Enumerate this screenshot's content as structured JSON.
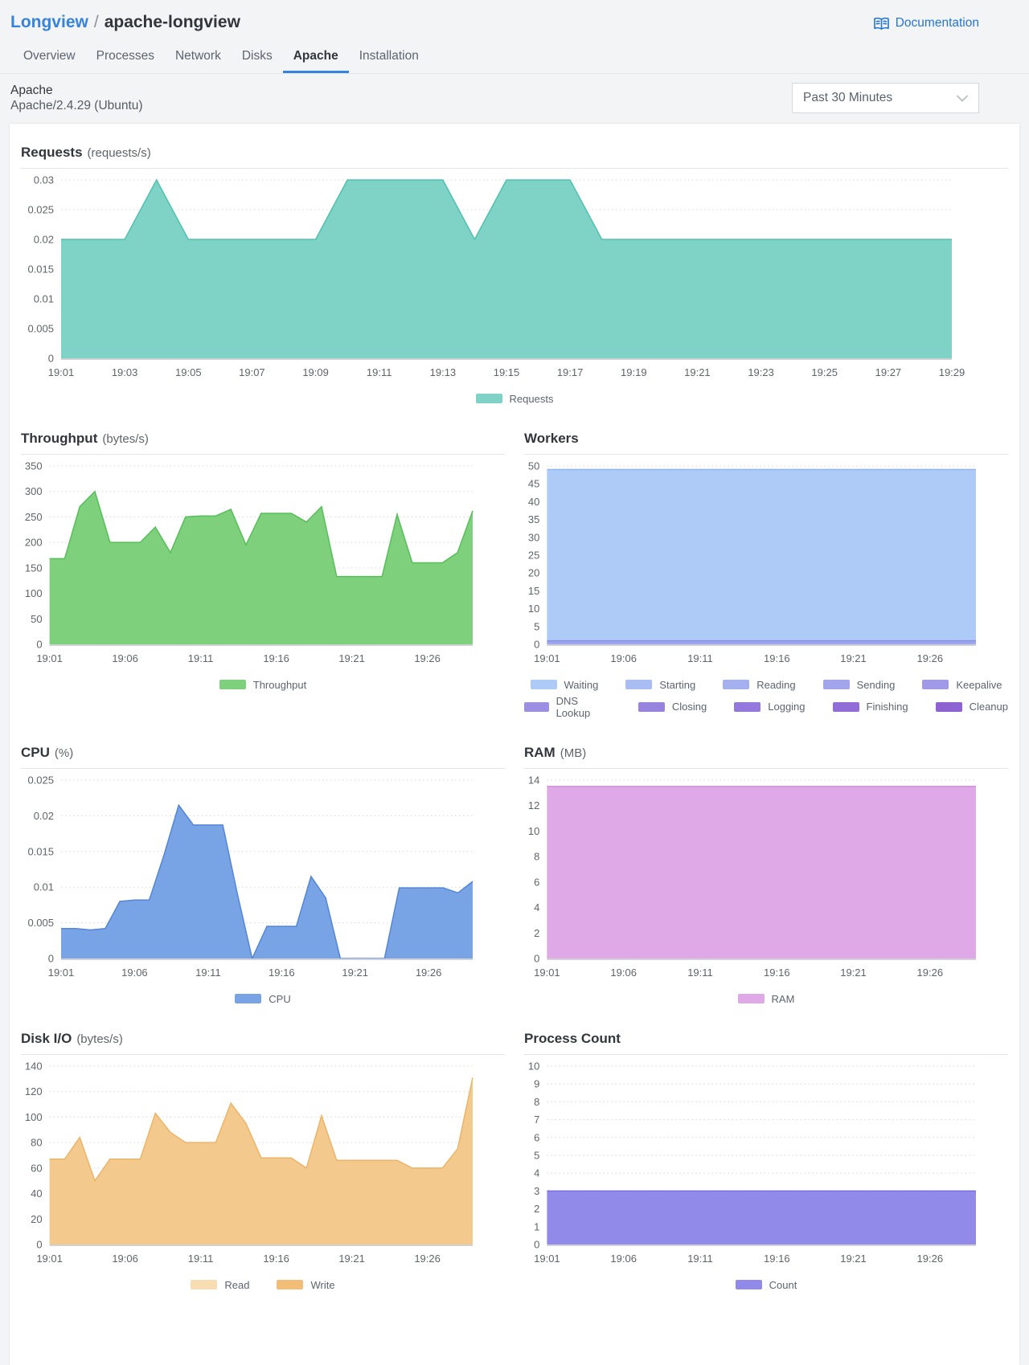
{
  "colors": {
    "accent_blue": "#3683dc",
    "link_blue": "#2575d0",
    "page_bg": "#f3f4f6"
  },
  "header": {
    "breadcrumb": {
      "parent": "Longview",
      "separator": "/",
      "current": "apache-longview"
    },
    "documentation_label": "Documentation",
    "tabs": [
      {
        "label": "Overview",
        "active": false
      },
      {
        "label": "Processes",
        "active": false
      },
      {
        "label": "Network",
        "active": false
      },
      {
        "label": "Disks",
        "active": false
      },
      {
        "label": "Apache",
        "active": true
      },
      {
        "label": "Installation",
        "active": false
      }
    ]
  },
  "subheader": {
    "title": "Apache",
    "version": "Apache/2.4.29 (Ubuntu)",
    "time_range": "Past 30 Minutes"
  },
  "timeline": [
    "19:01",
    "19:02",
    "19:03",
    "19:04",
    "19:05",
    "19:06",
    "19:07",
    "19:08",
    "19:09",
    "19:10",
    "19:11",
    "19:12",
    "19:13",
    "19:14",
    "19:15",
    "19:16",
    "19:17",
    "19:18",
    "19:19",
    "19:20",
    "19:21",
    "19:22",
    "19:23",
    "19:24",
    "19:25",
    "19:26",
    "19:27",
    "19:28",
    "19:29"
  ],
  "chart_data": [
    {
      "id": "requests",
      "type": "area",
      "title": "Requests",
      "unit": "(requests/s)",
      "ylim": [
        0,
        0.03
      ],
      "yticks": [
        "0",
        "0.005",
        "0.01",
        "0.015",
        "0.02",
        "0.025",
        "0.03"
      ],
      "xticks": [
        0,
        2,
        4,
        6,
        8,
        10,
        12,
        14,
        16,
        18,
        20,
        22,
        24,
        26,
        28
      ],
      "right_pad": 70,
      "series": [
        {
          "name": "Requests",
          "fill": "#7ED3C6",
          "line": "#4FC1AF",
          "values": [
            0.02,
            0.02,
            0.02,
            0.03,
            0.02,
            0.02,
            0.02,
            0.02,
            0.02,
            0.03,
            0.03,
            0.03,
            0.03,
            0.02,
            0.03,
            0.03,
            0.03,
            0.02,
            0.02,
            0.02,
            0.02,
            0.02,
            0.02,
            0.02,
            0.02,
            0.02,
            0.02,
            0.02,
            0.02
          ]
        }
      ],
      "legend": [
        {
          "label": "Requests",
          "color": "#7ED3C6"
        }
      ]
    },
    {
      "id": "throughput",
      "type": "area",
      "title": "Throughput",
      "unit": "(bytes/s)",
      "ylim": [
        0,
        350
      ],
      "yticks": [
        "0",
        "50",
        "100",
        "150",
        "200",
        "250",
        "300",
        "350"
      ],
      "xticks": [
        0,
        5,
        10,
        15,
        20,
        25
      ],
      "right_pad": 40,
      "series": [
        {
          "name": "Throughput",
          "fill": "#7FD07D",
          "line": "#55BF58",
          "values": [
            168,
            168,
            270,
            300,
            200,
            200,
            200,
            230,
            180,
            250,
            252,
            252,
            265,
            195,
            257,
            257,
            257,
            240,
            270,
            133,
            133,
            133,
            133,
            255,
            160,
            160,
            160,
            180,
            262
          ]
        }
      ],
      "legend": [
        {
          "label": "Throughput",
          "color": "#7FD07D"
        }
      ]
    },
    {
      "id": "workers",
      "type": "area",
      "title": "Workers",
      "unit": "",
      "ylim": [
        0,
        50
      ],
      "yticks": [
        "0",
        "5",
        "10",
        "15",
        "20",
        "25",
        "30",
        "35",
        "40",
        "45",
        "50"
      ],
      "xticks": [
        0,
        5,
        10,
        15,
        20,
        25
      ],
      "right_pad": 40,
      "series": [
        {
          "name": "Waiting",
          "fill": "#AECAF7",
          "line": "#90B6F2",
          "values": [
            49,
            49,
            49,
            49,
            49,
            49,
            49,
            49,
            49,
            49,
            49,
            49,
            49,
            49,
            49,
            49,
            49,
            49,
            49,
            49,
            49,
            49,
            49,
            49,
            49,
            49,
            49,
            49,
            49
          ]
        },
        {
          "name": "Sending",
          "fill": "#9FA6EC",
          "line": "#8890E6",
          "values": [
            1,
            1,
            1,
            1,
            1,
            1,
            1,
            1,
            1,
            1,
            1,
            1,
            1,
            1,
            1,
            1,
            1,
            1,
            1,
            1,
            1,
            1,
            1,
            1,
            1,
            1,
            1,
            1,
            1
          ]
        }
      ],
      "legend_per_row": 5,
      "legend": [
        {
          "label": "Waiting",
          "color": "#AECAF7"
        },
        {
          "label": "Starting",
          "color": "#A9BDF3"
        },
        {
          "label": "Reading",
          "color": "#A5B1EF"
        },
        {
          "label": "Sending",
          "color": "#A2A5EB"
        },
        {
          "label": "Keepalive",
          "color": "#9F99E7"
        },
        {
          "label": "DNS Lookup",
          "color": "#9B8EE3"
        },
        {
          "label": "Closing",
          "color": "#9883DF"
        },
        {
          "label": "Logging",
          "color": "#9478DB"
        },
        {
          "label": "Finishing",
          "color": "#916DD6"
        },
        {
          "label": "Cleanup",
          "color": "#8D62D2"
        }
      ]
    },
    {
      "id": "cpu",
      "type": "area",
      "title": "CPU",
      "unit": "(%)",
      "ylim": [
        0,
        0.025
      ],
      "yticks": [
        "0",
        "0.005",
        "0.01",
        "0.015",
        "0.02",
        "0.025"
      ],
      "xticks": [
        0,
        5,
        10,
        15,
        20,
        25
      ],
      "right_pad": 40,
      "series": [
        {
          "name": "CPU",
          "fill": "#78A3E4",
          "line": "#5386D6",
          "values": [
            0.0042,
            0.0042,
            0.004,
            0.0042,
            0.008,
            0.0082,
            0.0082,
            0.0145,
            0.0215,
            0.0187,
            0.0187,
            0.0187,
            0.009,
            0,
            0.0045,
            0.0045,
            0.0045,
            0.0115,
            0.0085,
            0,
            0,
            0,
            0,
            0.0099,
            0.0099,
            0.0099,
            0.0099,
            0.0092,
            0.0108
          ]
        }
      ],
      "legend": [
        {
          "label": "CPU",
          "color": "#78A3E4"
        }
      ]
    },
    {
      "id": "ram",
      "type": "area",
      "title": "RAM",
      "unit": "(MB)",
      "ylim": [
        0,
        14
      ],
      "yticks": [
        "0",
        "2",
        "4",
        "6",
        "8",
        "10",
        "12",
        "14"
      ],
      "xticks": [
        0,
        5,
        10,
        15,
        20,
        25
      ],
      "right_pad": 40,
      "series": [
        {
          "name": "RAM",
          "fill": "#DFA8E6",
          "line": "#D18BDC",
          "values": [
            13.5,
            13.5,
            13.5,
            13.5,
            13.5,
            13.5,
            13.5,
            13.5,
            13.5,
            13.5,
            13.5,
            13.5,
            13.5,
            13.5,
            13.5,
            13.5,
            13.5,
            13.5,
            13.5,
            13.5,
            13.5,
            13.5,
            13.5,
            13.5,
            13.5,
            13.5,
            13.5,
            13.5,
            13.5
          ]
        }
      ],
      "legend": [
        {
          "label": "RAM",
          "color": "#DFA8E6"
        }
      ]
    },
    {
      "id": "disk-io",
      "type": "area",
      "title": "Disk I/O",
      "unit": "(bytes/s)",
      "ylim": [
        0,
        140
      ],
      "yticks": [
        "0",
        "20",
        "40",
        "60",
        "80",
        "100",
        "120",
        "140"
      ],
      "xticks": [
        0,
        5,
        10,
        15,
        20,
        25
      ],
      "right_pad": 40,
      "series": [
        {
          "name": "Read",
          "fill": "#F8DDB2",
          "line": null,
          "values": [
            0,
            0,
            0,
            0,
            0,
            0,
            0,
            0,
            0,
            0,
            0,
            0,
            0,
            0,
            0,
            0,
            0,
            0,
            0,
            0,
            0,
            0,
            0,
            0,
            0,
            0,
            0,
            0,
            0
          ]
        },
        {
          "name": "Write",
          "fill": "#F4C98E",
          "line": "#ECB467",
          "values": [
            67,
            67,
            84,
            50,
            67,
            67,
            67,
            103,
            88,
            80,
            80,
            80,
            111,
            95,
            68,
            68,
            68,
            60,
            101,
            66,
            66,
            66,
            66,
            66,
            60,
            60,
            60,
            75,
            131
          ]
        }
      ],
      "legend": [
        {
          "label": "Read",
          "color": "#F8DDB2"
        },
        {
          "label": "Write",
          "color": "#F2BE77"
        }
      ]
    },
    {
      "id": "process-count",
      "type": "area",
      "title": "Process Count",
      "unit": "",
      "ylim": [
        0,
        10
      ],
      "yticks": [
        "0",
        "1",
        "2",
        "3",
        "4",
        "5",
        "6",
        "7",
        "8",
        "9",
        "10"
      ],
      "xticks": [
        0,
        5,
        10,
        15,
        20,
        25
      ],
      "right_pad": 40,
      "series": [
        {
          "name": "Count",
          "fill": "#928AE9",
          "line": "#7A6FE0",
          "values": [
            3,
            3,
            3,
            3,
            3,
            3,
            3,
            3,
            3,
            3,
            3,
            3,
            3,
            3,
            3,
            3,
            3,
            3,
            3,
            3,
            3,
            3,
            3,
            3,
            3,
            3,
            3,
            3,
            3
          ]
        }
      ],
      "legend": [
        {
          "label": "Count",
          "color": "#928AE9"
        }
      ]
    }
  ]
}
